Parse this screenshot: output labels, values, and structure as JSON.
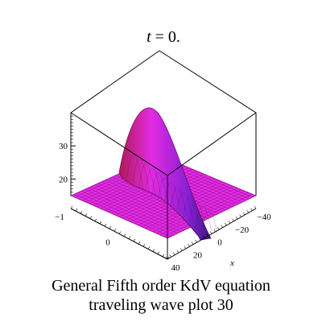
{
  "chart_data": {
    "type": "surface",
    "title_var": "t",
    "title_rest": " = 0.",
    "caption_line1": "General Fifth order  KdV  equation",
    "caption_line2": "traveling wave plot 30",
    "x_axis_label": "x",
    "x_ticks": [
      "−40",
      "−20",
      "0",
      "20",
      "40"
    ],
    "y_ticks": [
      "−1",
      "0"
    ],
    "z_ticks": [
      "30",
      "20"
    ],
    "z_range": [
      15,
      40
    ],
    "surface_color": "#e22be2",
    "peak_color": "#b01a55",
    "peak_value": 38,
    "base_value": 15
  }
}
